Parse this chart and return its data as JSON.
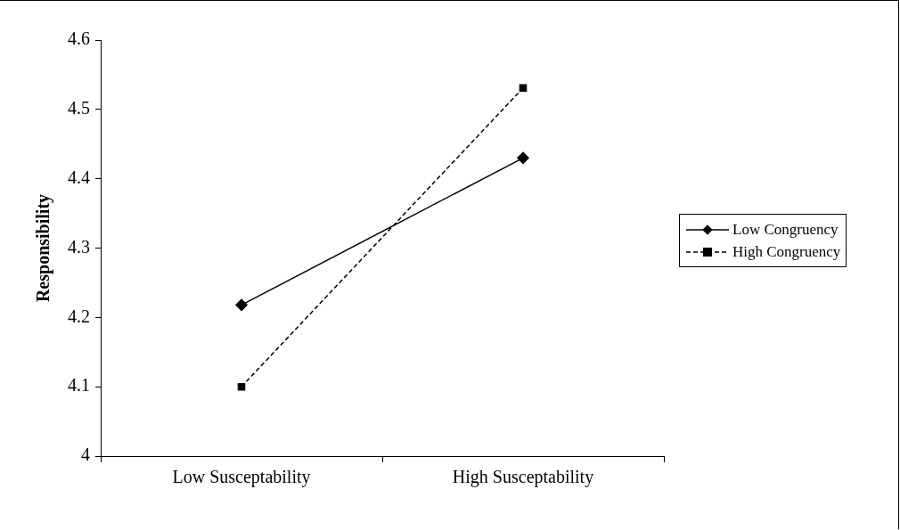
{
  "chart_data": {
    "type": "line",
    "ylabel": "Responsibility",
    "categories": [
      "Low Susceptability",
      "High Susceptability"
    ],
    "series": [
      {
        "name": "Low Congruency",
        "color": "#000000",
        "values": [
          4.218,
          4.43
        ],
        "marker": "diamond",
        "line_style": "solid"
      },
      {
        "name": "High Congruency",
        "color": "#000000",
        "values": [
          4.1,
          4.531
        ],
        "marker": "square",
        "line_style": "dashed"
      }
    ],
    "ylim": [
      4,
      4.6
    ],
    "yticks": [
      4,
      4.1,
      4.2,
      4.3,
      4.4,
      4.5,
      4.6
    ],
    "grid": false,
    "legend": "right"
  }
}
